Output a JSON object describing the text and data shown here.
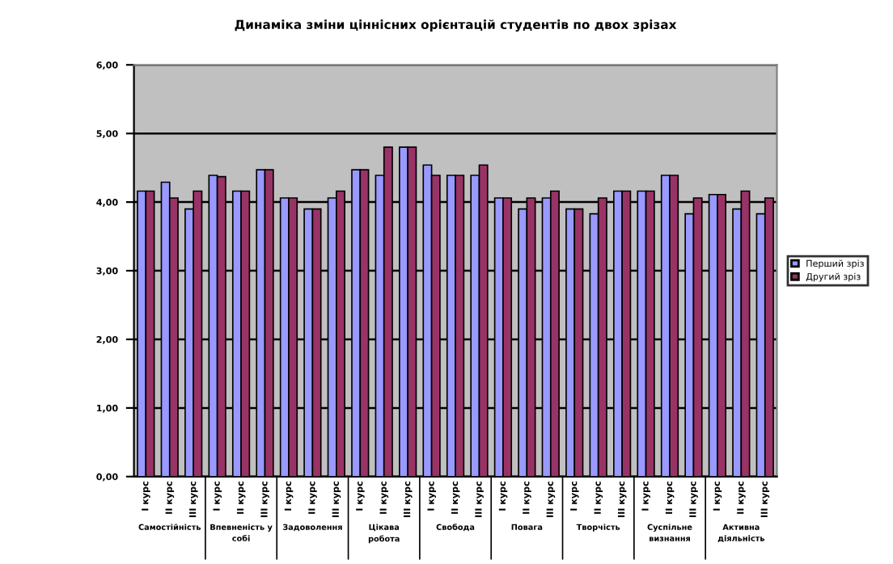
{
  "chart_data": {
    "type": "bar",
    "title": "Динаміка зміни ціннісних орієнтацій студентів по двох зрізах",
    "categories": [
      "І курс",
      "ІІ курс",
      "ІІІ курс",
      "І курс",
      "ІІ курс",
      "ІІІ курс",
      "І курс",
      "ІІ курс",
      "ІІІ курс",
      "І курс",
      "ІІ курс",
      "ІІІ курс",
      "І курс",
      "ІІ курс",
      "ІІІ курс",
      "І курс",
      "ІІ курс",
      "ІІІ курс",
      "І курс",
      "ІІ курс",
      "ІІІ курс",
      "І курс",
      "ІІ курс",
      "ІІІ курс",
      "І курс",
      "ІІ курс",
      "ІІІ курс"
    ],
    "series": [
      {
        "name": "Перший зріз",
        "color": "#9999ff",
        "values": [
          4.16,
          4.29,
          3.9,
          4.39,
          4.16,
          4.47,
          4.06,
          3.9,
          4.06,
          4.47,
          4.39,
          4.8,
          4.54,
          4.39,
          4.39,
          4.06,
          3.9,
          4.06,
          3.9,
          3.83,
          4.16,
          4.16,
          4.39,
          3.83,
          4.11,
          3.9,
          3.83
        ]
      },
      {
        "name": "Другий зріз",
        "color": "#993366",
        "values": [
          4.16,
          4.06,
          4.16,
          4.37,
          4.16,
          4.47,
          4.06,
          3.9,
          4.16,
          4.47,
          4.8,
          4.8,
          4.39,
          4.39,
          4.54,
          4.06,
          4.06,
          4.16,
          3.9,
          4.06,
          4.16,
          4.16,
          4.39,
          4.06,
          4.11,
          4.16,
          4.06
        ]
      }
    ],
    "annotations": [
      "Самостійність",
      "Впевненість у собі",
      "Задоволення",
      "Цікава робота",
      "Свобода",
      "Повага",
      "Творчість",
      "Суспільне визнання",
      "Активна діяльність"
    ],
    "ylim": [
      0,
      6
    ],
    "yticks": [
      {
        "value": 0,
        "label": "0,00"
      },
      {
        "value": 1,
        "label": "1,00"
      },
      {
        "value": 2,
        "label": "2,00"
      },
      {
        "value": 3,
        "label": "3,00"
      },
      {
        "value": 4,
        "label": "4,00"
      },
      {
        "value": 5,
        "label": "5,00"
      },
      {
        "value": 6,
        "label": "6,00"
      }
    ],
    "grid": "y",
    "legend": "right"
  }
}
